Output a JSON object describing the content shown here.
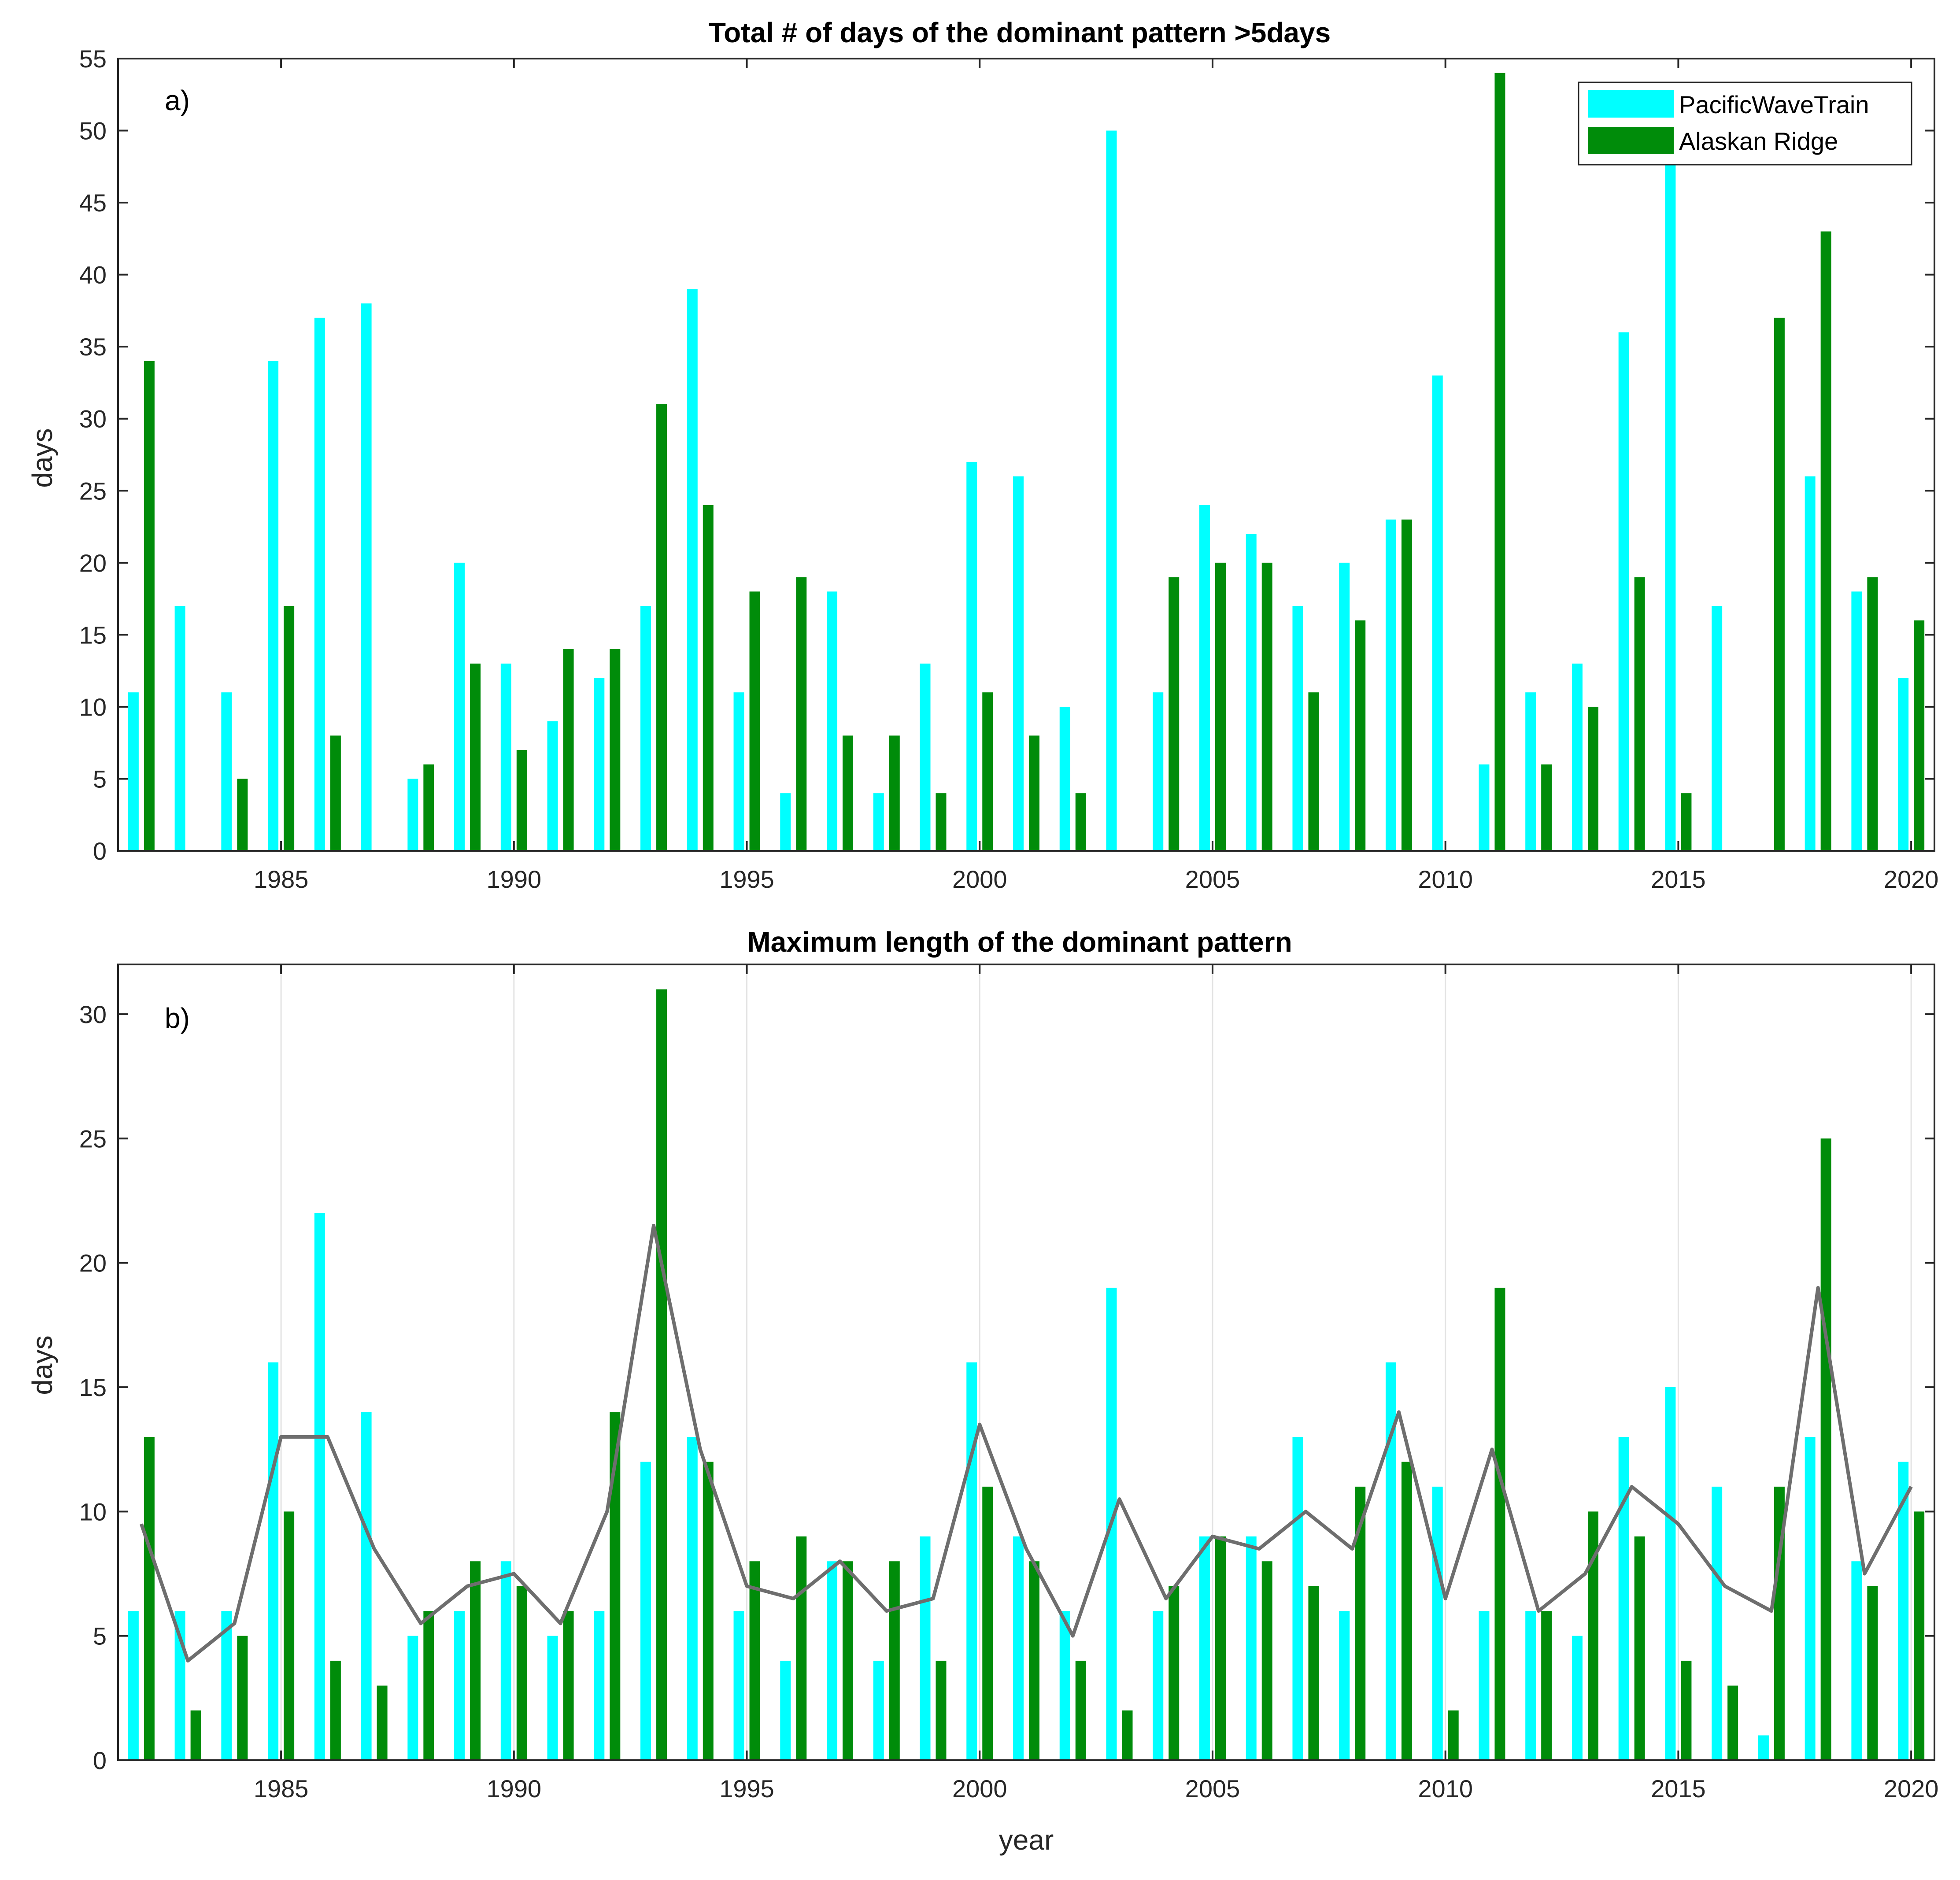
{
  "chart_data": [
    {
      "type": "bar",
      "panel_label": "a)",
      "title": "Total # of days of the dominant pattern >5days",
      "xlabel": "",
      "ylabel": "days",
      "xlim": [
        1981.5,
        2020.5
      ],
      "ylim": [
        0,
        55
      ],
      "yticks": [
        0,
        5,
        10,
        15,
        20,
        25,
        30,
        35,
        40,
        45,
        50,
        55
      ],
      "xticks": [
        1985,
        1990,
        1995,
        2000,
        2005,
        2010,
        2015,
        2020
      ],
      "grid": false,
      "legend_position": "top-right",
      "categories": [
        1982,
        1983,
        1984,
        1985,
        1986,
        1987,
        1988,
        1989,
        1990,
        1991,
        1992,
        1993,
        1994,
        1995,
        1996,
        1997,
        1998,
        1999,
        2000,
        2001,
        2002,
        2003,
        2004,
        2005,
        2006,
        2007,
        2008,
        2009,
        2010,
        2011,
        2012,
        2013,
        2014,
        2015,
        2016,
        2017,
        2018,
        2019,
        2020
      ],
      "series": [
        {
          "name": "PacificWaveTrain",
          "color": "#00ffff",
          "values": [
            11,
            17,
            11,
            34,
            37,
            38,
            5,
            20,
            13,
            9,
            12,
            17,
            39,
            11,
            4,
            18,
            4,
            13,
            27,
            26,
            10,
            50,
            11,
            24,
            22,
            17,
            20,
            23,
            33,
            6,
            11,
            13,
            36,
            48,
            17,
            0,
            26,
            18,
            12
          ]
        },
        {
          "name": "Alaskan Ridge",
          "color": "#008c0a",
          "values": [
            34,
            0,
            5,
            17,
            8,
            0,
            6,
            13,
            7,
            14,
            14,
            31,
            24,
            18,
            19,
            8,
            8,
            4,
            11,
            8,
            4,
            0,
            19,
            20,
            20,
            11,
            16,
            23,
            0,
            54,
            6,
            10,
            19,
            4,
            0,
            37,
            43,
            19,
            16
          ]
        }
      ]
    },
    {
      "type": "bar",
      "panel_label": "b)",
      "title": "Maximum length of the dominant pattern",
      "xlabel": "year",
      "ylabel": "days",
      "xlim": [
        1981.5,
        2020.5
      ],
      "ylim": [
        0,
        32
      ],
      "yticks": [
        0,
        5,
        10,
        15,
        20,
        25,
        30
      ],
      "xticks": [
        1985,
        1990,
        1995,
        2000,
        2005,
        2010,
        2015,
        2020
      ],
      "grid": true,
      "categories": [
        1982,
        1983,
        1984,
        1985,
        1986,
        1987,
        1988,
        1989,
        1990,
        1991,
        1992,
        1993,
        1994,
        1995,
        1996,
        1997,
        1998,
        1999,
        2000,
        2001,
        2002,
        2003,
        2004,
        2005,
        2006,
        2007,
        2008,
        2009,
        2010,
        2011,
        2012,
        2013,
        2014,
        2015,
        2016,
        2017,
        2018,
        2019,
        2020
      ],
      "series": [
        {
          "name": "PacificWaveTrain",
          "color": "#00ffff",
          "values": [
            6,
            6,
            6,
            16,
            22,
            14,
            5,
            6,
            8,
            5,
            6,
            12,
            13,
            6,
            4,
            8,
            4,
            9,
            16,
            9,
            6,
            19,
            6,
            9,
            9,
            13,
            6,
            16,
            11,
            6,
            6,
            5,
            13,
            15,
            11,
            1,
            13,
            8,
            12
          ]
        },
        {
          "name": "Alaskan Ridge",
          "color": "#008c0a",
          "values": [
            13,
            2,
            5,
            10,
            4,
            3,
            6,
            8,
            7,
            6,
            14,
            31,
            12,
            8,
            9,
            8,
            8,
            4,
            11,
            8,
            4,
            2,
            7,
            9,
            8,
            7,
            11,
            12,
            2,
            19,
            6,
            10,
            9,
            4,
            3,
            11,
            25,
            7,
            10
          ]
        },
        {
          "name": "mean",
          "type": "line",
          "color": "#6e6e6e",
          "values": [
            9.5,
            4,
            5.5,
            13,
            13,
            8.5,
            5.5,
            7,
            7.5,
            5.5,
            10,
            21.5,
            12.5,
            7,
            6.5,
            8,
            6,
            6.5,
            13.5,
            8.5,
            5,
            10.5,
            6.5,
            9,
            8.5,
            10,
            8.5,
            14,
            6.5,
            12.5,
            6,
            7.5,
            11,
            9.5,
            7,
            6,
            19,
            7.5,
            11
          ]
        }
      ]
    }
  ]
}
